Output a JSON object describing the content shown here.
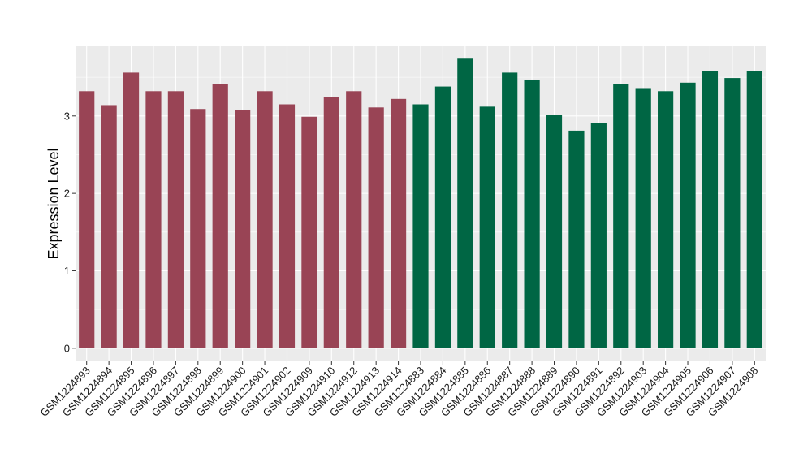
{
  "chart_data": {
    "type": "bar",
    "ylabel": "Expression Level",
    "xlabel": "",
    "ylim": [
      -0.17,
      3.9
    ],
    "yticks": [
      0,
      1,
      2,
      3
    ],
    "grid": true,
    "background": "#EBEBEB",
    "categories": [
      "GSM1224893",
      "GSM1224894",
      "GSM1224895",
      "GSM1224896",
      "GSM1224897",
      "GSM1224898",
      "GSM1224899",
      "GSM1224900",
      "GSM1224901",
      "GSM1224902",
      "GSM1224909",
      "GSM1224910",
      "GSM1224912",
      "GSM1224913",
      "GSM1224914",
      "GSM1224883",
      "GSM1224884",
      "GSM1224885",
      "GSM1224886",
      "GSM1224887",
      "GSM1224888",
      "GSM1224889",
      "GSM1224890",
      "GSM1224891",
      "GSM1224892",
      "GSM1224903",
      "GSM1224904",
      "GSM1224905",
      "GSM1224906",
      "GSM1224907",
      "GSM1224908"
    ],
    "values": [
      3.32,
      3.14,
      3.56,
      3.32,
      3.32,
      3.09,
      3.41,
      3.08,
      3.32,
      3.15,
      2.99,
      3.24,
      3.32,
      3.11,
      3.22,
      3.15,
      3.38,
      3.74,
      3.12,
      3.56,
      3.47,
      3.01,
      2.81,
      2.91,
      3.41,
      3.36,
      3.32,
      3.43,
      3.58,
      3.49,
      3.58
    ],
    "groups": [
      0,
      0,
      0,
      0,
      0,
      0,
      0,
      0,
      0,
      0,
      0,
      0,
      0,
      0,
      0,
      1,
      1,
      1,
      1,
      1,
      1,
      1,
      1,
      1,
      1,
      1,
      1,
      1,
      1,
      1,
      1
    ],
    "colors": [
      "#994455",
      "#006644"
    ]
  }
}
